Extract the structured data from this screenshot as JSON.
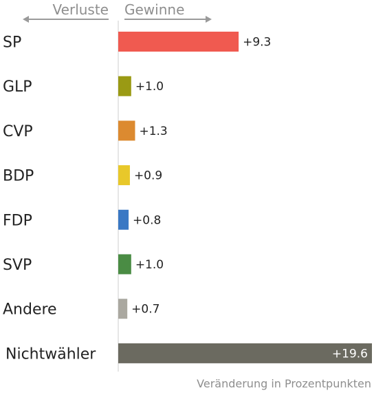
{
  "chart_data": {
    "type": "bar",
    "orientation": "horizontal",
    "categories": [
      "SP",
      "GLP",
      "CVP",
      "BDP",
      "FDP",
      "SVP",
      "Andere",
      "Nichtwähler"
    ],
    "values": [
      9.3,
      1.0,
      1.3,
      0.9,
      0.8,
      1.0,
      0.7,
      19.6
    ],
    "value_labels": [
      "+9.3",
      "+1.0",
      "+1.3",
      "+0.9",
      "+0.8",
      "+1.0",
      "+0.7",
      "+19.6"
    ],
    "colors": [
      "#f05a50",
      "#9a9a14",
      "#dc8a30",
      "#e8c82a",
      "#3a78c4",
      "#4a8c44",
      "#aaa8a0",
      "#6b6a60"
    ],
    "xlim": [
      0,
      19.6
    ],
    "grid": false,
    "legend": "none",
    "direction_labels": {
      "negative": "Verluste",
      "positive": "Gewinne"
    },
    "xlabel": "Veränderung in Prozentpunkten"
  }
}
